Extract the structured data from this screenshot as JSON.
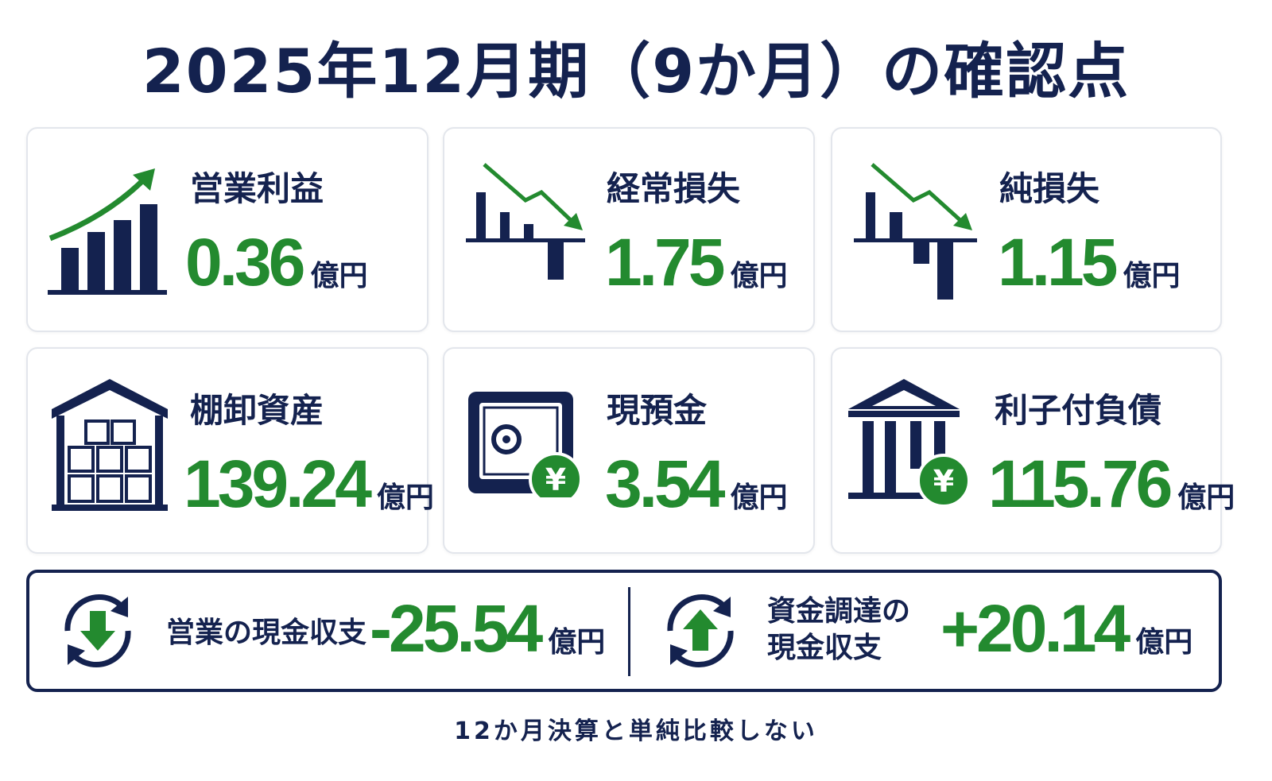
{
  "title": "2025年12月期（9か月）の確認点",
  "cards": [
    {
      "label": "営業利益",
      "value": "0.36",
      "unit": "億円"
    },
    {
      "label": "経常損失",
      "value": "1.75",
      "unit": "億円"
    },
    {
      "label": "純損失",
      "value": "1.15",
      "unit": "億円"
    },
    {
      "label": "棚卸資産",
      "value": "139.24",
      "unit": "億円"
    },
    {
      "label": "現預金",
      "value": "3.54",
      "unit": "億円"
    },
    {
      "label": "利子付負債",
      "value": "115.76",
      "unit": "億円"
    }
  ],
  "cash_flows": [
    {
      "label_lines": [
        "営業の現金収支"
      ],
      "value": "-25.54",
      "unit": "億円"
    },
    {
      "label_lines": [
        "資金調達の",
        "現金収支"
      ],
      "value": "+20.14",
      "unit": "億円"
    }
  ],
  "footnote": "12か月決算と単純比較しない"
}
